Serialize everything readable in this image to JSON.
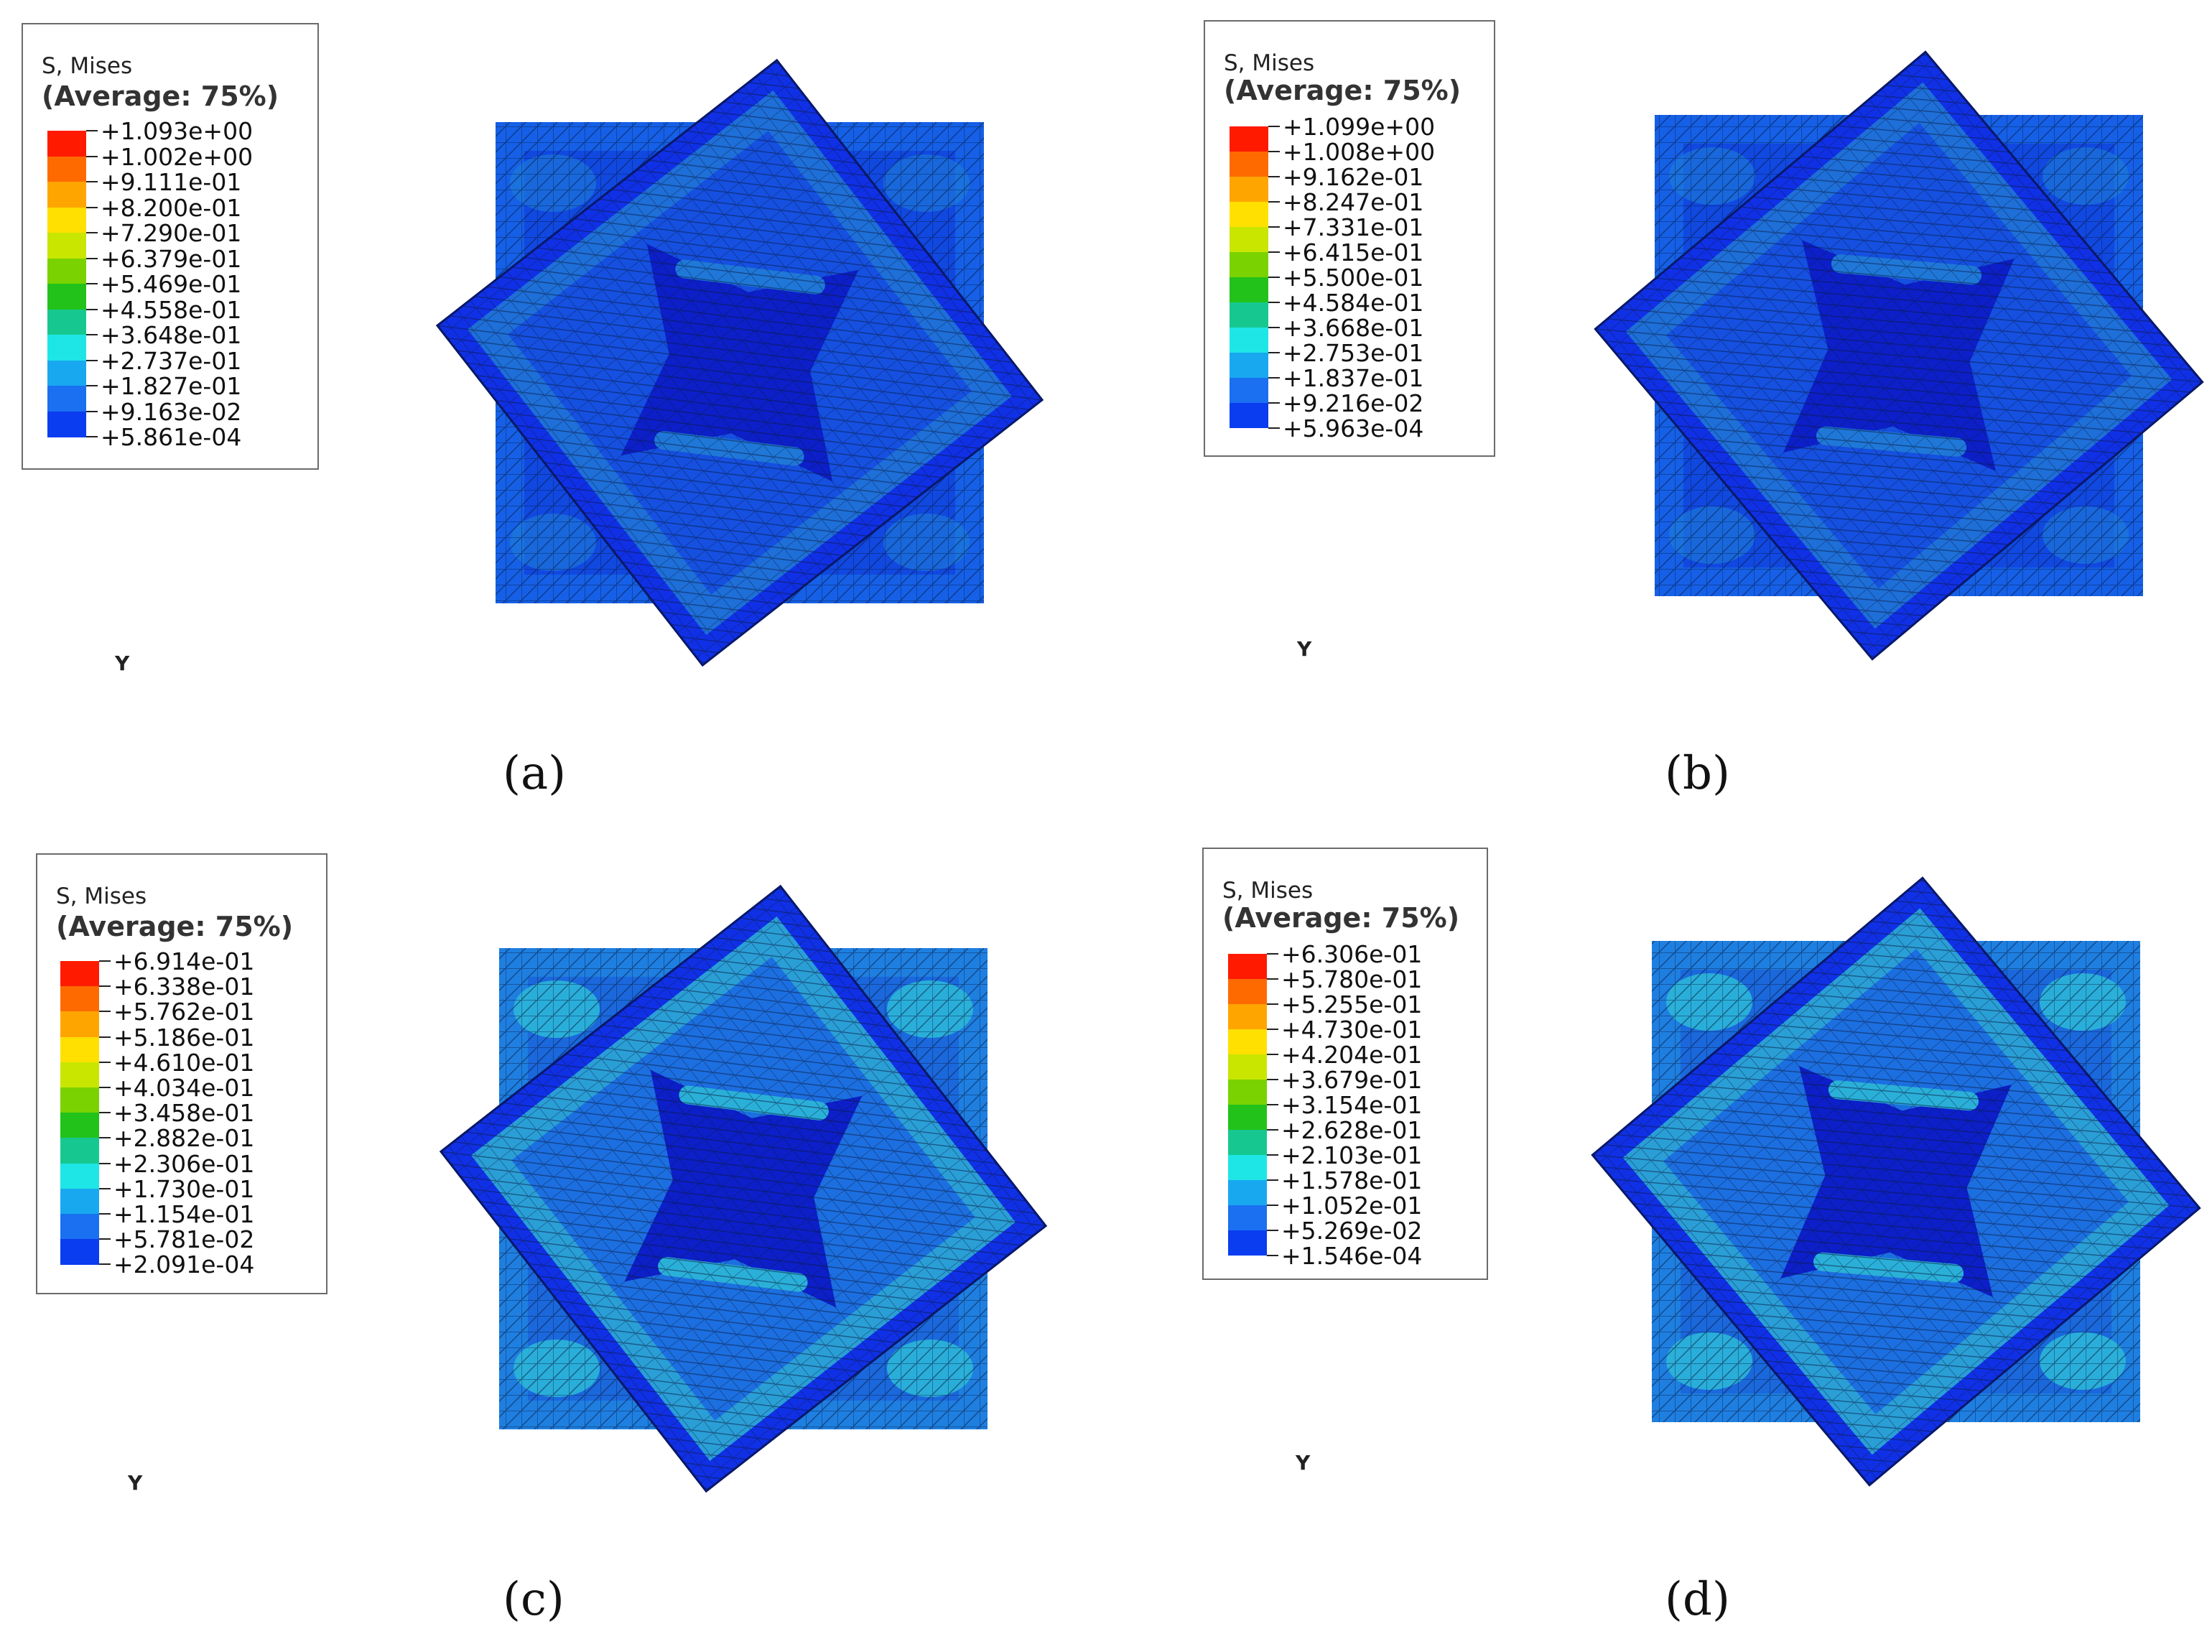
{
  "panels": [
    {
      "caption": "(a)",
      "legend_title": "S, Mises",
      "legend_subtitle": "(Average: 75%)",
      "values": [
        "+1.093e+00",
        "+1.002e+00",
        "+9.111e-01",
        "+8.200e-01",
        "+7.290e-01",
        "+6.379e-01",
        "+5.469e-01",
        "+4.558e-01",
        "+3.648e-01",
        "+2.737e-01",
        "+1.827e-01",
        "+9.163e-02",
        "+5.861e-04"
      ],
      "axis_label": "Y"
    },
    {
      "caption": "(b)",
      "legend_title": "S, Mises",
      "legend_subtitle": "(Average: 75%)",
      "values": [
        "+1.099e+00",
        "+1.008e+00",
        "+9.162e-01",
        "+8.247e-01",
        "+7.331e-01",
        "+6.415e-01",
        "+5.500e-01",
        "+4.584e-01",
        "+3.668e-01",
        "+2.753e-01",
        "+1.837e-01",
        "+9.216e-02",
        "+5.963e-04"
      ],
      "axis_label": "Y"
    },
    {
      "caption": "(c)",
      "legend_title": "S, Mises",
      "legend_subtitle": "(Average: 75%)",
      "values": [
        "+6.914e-01",
        "+6.338e-01",
        "+5.762e-01",
        "+5.186e-01",
        "+4.610e-01",
        "+4.034e-01",
        "+3.458e-01",
        "+2.882e-01",
        "+2.306e-01",
        "+1.730e-01",
        "+1.154e-01",
        "+5.781e-02",
        "+2.091e-04"
      ],
      "axis_label": "Y"
    },
    {
      "caption": "(d)",
      "legend_title": "S, Mises",
      "legend_subtitle": "(Average: 75%)",
      "values": [
        "+6.306e-01",
        "+5.780e-01",
        "+5.255e-01",
        "+4.730e-01",
        "+4.204e-01",
        "+3.679e-01",
        "+3.154e-01",
        "+2.628e-01",
        "+2.103e-01",
        "+1.578e-01",
        "+1.052e-01",
        "+5.269e-02",
        "+1.546e-04"
      ],
      "axis_label": "Y"
    }
  ],
  "colorbar": [
    "#ff1a00",
    "#ff6a00",
    "#ffa500",
    "#ffe000",
    "#c8e600",
    "#7ad200",
    "#22c21a",
    "#16c890",
    "#1ee6e6",
    "#18a8f0",
    "#1a70f0",
    "#0a3cf0",
    "#0010e8"
  ]
}
